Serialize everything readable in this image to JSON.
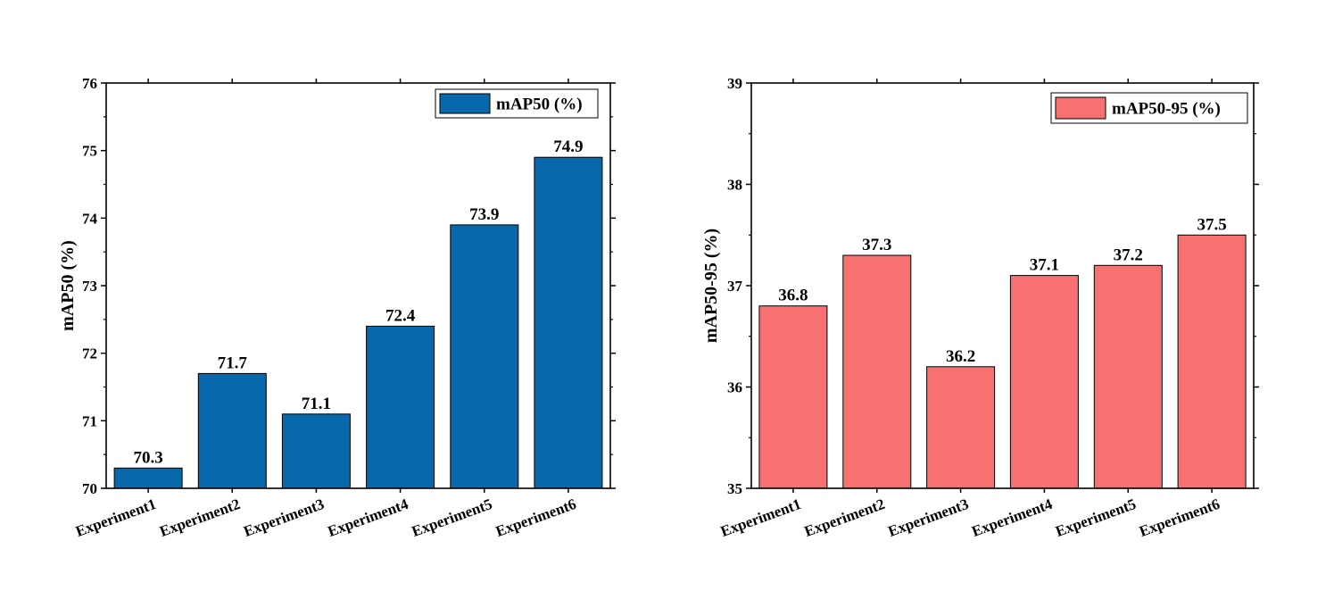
{
  "chart_data": [
    {
      "type": "bar",
      "title": "",
      "xlabel": "",
      "ylabel": "mAP50 (%)",
      "ylim": [
        70,
        76
      ],
      "yticks": [
        "70",
        "71",
        "72",
        "73",
        "74",
        "75",
        "76"
      ],
      "categories": [
        "Experiment1",
        "Experiment2",
        "Experiment3",
        "Experiment4",
        "Experiment5",
        "Experiment6"
      ],
      "series": [
        {
          "name": "mAP50 (%)",
          "values": [
            70.3,
            71.7,
            71.1,
            72.4,
            73.9,
            74.9
          ],
          "labels": [
            "70.3",
            "71.7",
            "71.1",
            "72.4",
            "73.9",
            "74.9"
          ],
          "color": "#0868ac"
        }
      ],
      "legend_position": "top-right"
    },
    {
      "type": "bar",
      "title": "",
      "xlabel": "",
      "ylabel": "mAP50-95 (%)",
      "ylim": [
        35,
        39
      ],
      "yticks": [
        "35",
        "36",
        "37",
        "38",
        "39"
      ],
      "categories": [
        "Experiment1",
        "Experiment2",
        "Experiment3",
        "Experiment4",
        "Experiment5",
        "Experiment6"
      ],
      "series": [
        {
          "name": "mAP50-95 (%)",
          "values": [
            36.8,
            37.3,
            36.2,
            37.1,
            37.2,
            37.5
          ],
          "labels": [
            "36.8",
            "37.3",
            "36.2",
            "37.1",
            "37.2",
            "37.5"
          ],
          "color": "#f87171"
        }
      ],
      "legend_position": "top-right"
    }
  ]
}
